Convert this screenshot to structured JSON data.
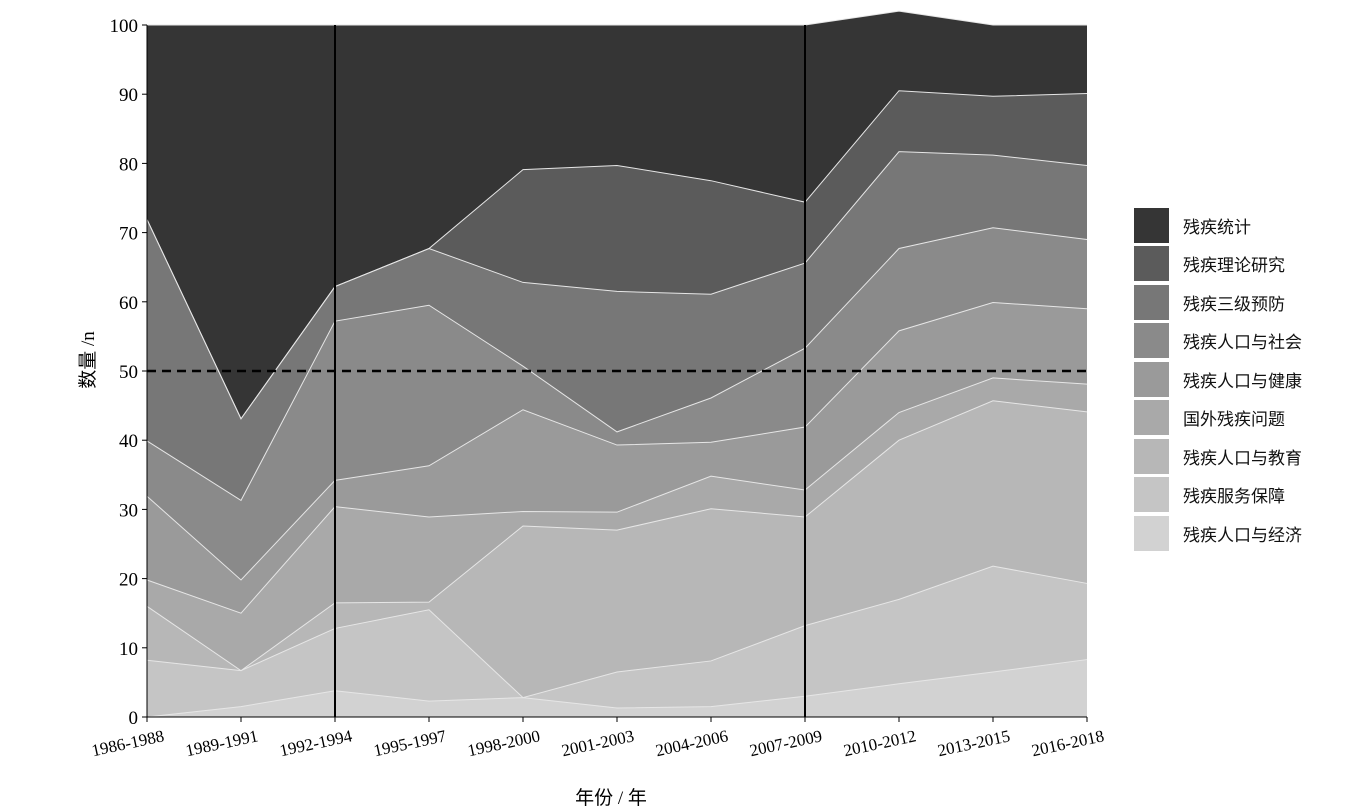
{
  "chart_data": {
    "type": "area",
    "stacked": true,
    "xlabel": "年份 / 年",
    "ylabel": "数量 /n",
    "ylim": [
      0,
      100
    ],
    "yticks": [
      0,
      10,
      20,
      30,
      40,
      50,
      60,
      70,
      80,
      90,
      100
    ],
    "categories": [
      "1986-1988",
      "1989-1991",
      "1992-1994",
      "1995-1997",
      "1998-2000",
      "2001-2003",
      "2004-2006",
      "2007-2009",
      "2010-2012",
      "2013-2015",
      "2016-2018"
    ],
    "series": [
      {
        "name": "残疾人口与经济",
        "color": "#d2d2d2",
        "values": [
          0.0,
          1.5,
          3.8,
          2.3,
          2.8,
          1.3,
          1.5,
          3.0,
          4.8,
          6.5,
          8.3
        ]
      },
      {
        "name": "残疾服务保障",
        "color": "#c5c5c5",
        "values": [
          8.2,
          5.2,
          9.0,
          13.2,
          0.0,
          5.2,
          6.6,
          10.2,
          12.2,
          15.3,
          11.0
        ]
      },
      {
        "name": "残疾人口与教育",
        "color": "#b7b7b7",
        "values": [
          7.8,
          0.0,
          3.7,
          1.1,
          24.8,
          20.5,
          22.0,
          15.7,
          23.0,
          23.9,
          24.8
        ]
      },
      {
        "name": "国外残疾问题",
        "color": "#a9a9a9",
        "values": [
          3.8,
          8.3,
          13.9,
          12.3,
          2.1,
          2.6,
          4.7,
          3.9,
          4.0,
          3.3,
          4.0
        ]
      },
      {
        "name": "残疾人口与健康",
        "color": "#9a9a9a",
        "values": [
          12.1,
          4.8,
          3.8,
          7.4,
          14.7,
          9.7,
          4.9,
          9.1,
          11.8,
          10.9,
          10.9
        ]
      },
      {
        "name": "残疾人口与社会",
        "color": "#8a8a8a",
        "values": [
          8.0,
          11.5,
          23.0,
          23.2,
          6.3,
          1.9,
          6.4,
          11.4,
          11.9,
          10.8,
          10.0
        ]
      },
      {
        "name": "残疾三级预防",
        "color": "#777777",
        "values": [
          32.0,
          11.8,
          5.0,
          8.2,
          12.1,
          20.3,
          15.0,
          12.3,
          14.0,
          10.5,
          10.7
        ]
      },
      {
        "name": "残疾理论研究",
        "color": "#5b5b5b",
        "values": [
          0.0,
          0.0,
          0.0,
          0.0,
          16.3,
          18.2,
          16.4,
          8.8,
          8.8,
          8.5,
          10.4
        ]
      },
      {
        "name": "残疾统计",
        "color": "#353535",
        "values": [
          28.1,
          56.9,
          37.8,
          32.3,
          20.9,
          20.3,
          22.5,
          25.6,
          11.5,
          10.3,
          9.9
        ]
      }
    ],
    "vertical_lines": [
      "1992-1994",
      "2007-2009"
    ],
    "reference_line": {
      "y": 50,
      "style": "dashed"
    },
    "legend_position": "right",
    "grid": false
  }
}
